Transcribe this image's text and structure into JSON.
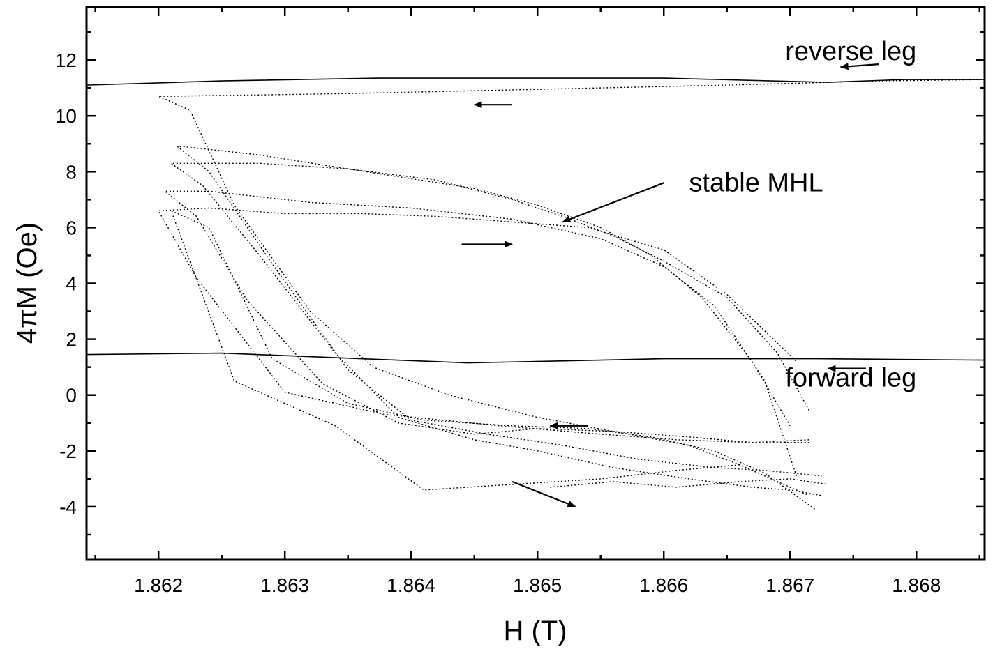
{
  "chart_data": {
    "type": "line",
    "xlabel": "H (T)",
    "ylabel": "4πM (Oe)",
    "xlim": [
      1.86143,
      1.86854
    ],
    "ylim": [
      -5.9,
      13.9
    ],
    "x_ticks": [
      1.862,
      1.863,
      1.864,
      1.865,
      1.866,
      1.867,
      1.868
    ],
    "x_tick_labels": [
      "1.862",
      "1.863",
      "1.864",
      "1.865",
      "1.866",
      "1.867",
      "1.868"
    ],
    "y_ticks": [
      -4,
      -2,
      0,
      2,
      4,
      6,
      8,
      10,
      12
    ],
    "y_tick_labels": [
      "-4",
      "-2",
      "0",
      "2",
      "4",
      "6",
      "8",
      "10",
      "12"
    ],
    "grid": false,
    "annotations": [
      {
        "text": "reverse leg",
        "x": 1.868,
        "y": 12.0
      },
      {
        "text": "forward leg",
        "x": 1.868,
        "y": 0.3
      },
      {
        "text": "stable MHL",
        "x": 1.8662,
        "y": 7.3
      }
    ],
    "series": [
      {
        "style": "solid",
        "x": [
          1.86143,
          1.8625,
          1.86375,
          1.866,
          1.8673,
          1.8679,
          1.86854
        ],
        "y": [
          11.1,
          11.25,
          11.35,
          11.35,
          11.2,
          11.3,
          11.3
        ]
      },
      {
        "style": "solid",
        "x": [
          1.86143,
          1.8625,
          1.86445,
          1.866,
          1.8672,
          1.86854
        ],
        "y": [
          1.45,
          1.5,
          1.15,
          1.3,
          1.3,
          1.25
        ]
      },
      {
        "style": "dotted",
        "x": [
          1.86854,
          1.8677,
          1.8665,
          1.8655,
          1.8645,
          1.8635,
          1.8628,
          1.862,
          1.86225,
          1.8626,
          1.8632,
          1.8637,
          1.8643,
          1.865,
          1.8656,
          1.8662,
          1.8666,
          1.867,
          1.86715
        ],
        "y": [
          11.3,
          11.25,
          11.1,
          11.0,
          10.9,
          10.8,
          10.75,
          10.7,
          10.2,
          6.8,
          3.0,
          1.0,
          0.0,
          -0.8,
          -1.3,
          -1.8,
          -2.5,
          -3.3,
          -3.6
        ]
      },
      {
        "style": "dotted",
        "x": [
          1.86715,
          1.8669,
          1.8665,
          1.866,
          1.8656,
          1.8652,
          1.8648,
          1.8642,
          1.8635,
          1.8628,
          1.8623,
          1.8621,
          1.86235,
          1.8628,
          1.8634,
          1.8639,
          1.8645,
          1.865,
          1.8656,
          1.8662,
          1.8667,
          1.867,
          1.86725
        ],
        "y": [
          -0.55,
          1.5,
          3.5,
          4.8,
          5.7,
          6.4,
          7.0,
          7.7,
          8.1,
          8.3,
          8.3,
          8.3,
          7.5,
          5.0,
          1.5,
          -0.8,
          -1.6,
          -2.0,
          -2.6,
          -3.0,
          -3.3,
          -3.4,
          -3.6
        ]
      },
      {
        "style": "dotted",
        "x": [
          1.867,
          1.8667,
          1.8663,
          1.8659,
          1.8655,
          1.865,
          1.8645,
          1.8635,
          1.8628,
          1.8622,
          1.86215,
          1.8624,
          1.8629,
          1.8635,
          1.864,
          1.8646,
          1.8652,
          1.8658,
          1.8664,
          1.8668,
          1.86725
        ],
        "y": [
          -1.1,
          1.2,
          3.5,
          5.0,
          6.0,
          6.8,
          7.4,
          8.1,
          8.6,
          8.9,
          8.9,
          8.0,
          4.7,
          0.9,
          -0.9,
          -1.4,
          -1.8,
          -2.3,
          -2.6,
          -2.7,
          -2.9
        ]
      },
      {
        "style": "dotted",
        "x": [
          1.86705,
          1.8668,
          1.8664,
          1.866,
          1.8655,
          1.8648,
          1.864,
          1.8632,
          1.8624,
          1.86205,
          1.8623,
          1.8627,
          1.8633,
          1.8639,
          1.8645,
          1.865,
          1.8656,
          1.8662,
          1.8667,
          1.86715
        ],
        "y": [
          -2.9,
          0.5,
          3.2,
          4.6,
          5.6,
          6.3,
          6.7,
          6.9,
          7.3,
          7.3,
          6.4,
          3.4,
          0.4,
          -1.0,
          -1.4,
          -1.2,
          -1.3,
          -1.5,
          -1.7,
          -1.7
        ]
      },
      {
        "style": "dotted",
        "x": [
          1.86715,
          1.8667,
          1.8661,
          1.8655,
          1.8647,
          1.8638,
          1.863,
          1.8623,
          1.862,
          1.8624,
          1.863,
          1.8636,
          1.8642,
          1.8648,
          1.8654,
          1.866,
          1.8665,
          1.86705
        ],
        "y": [
          -1.6,
          -1.7,
          -1.6,
          -1.4,
          -1.1,
          -0.7,
          0.1,
          4.2,
          6.6,
          6.7,
          6.5,
          6.5,
          6.4,
          6.2,
          6.0,
          5.2,
          3.6,
          1.2
        ]
      },
      {
        "style": "dotted",
        "x": [
          1.8666,
          1.8661,
          1.8655,
          1.8648,
          1.8641,
          1.8634,
          1.8626,
          1.8621,
          1.8624,
          1.8629,
          1.8635,
          1.8641,
          1.8648,
          1.8654,
          1.8659,
          1.8664,
          1.8668,
          1.8672
        ],
        "y": [
          -2.5,
          -2.7,
          -3.0,
          -3.2,
          -3.4,
          -1.1,
          0.5,
          6.6,
          6.0,
          1.3,
          -0.3,
          -0.9,
          -1.1,
          -1.2,
          -1.5,
          -2.0,
          -2.8,
          -4.1
        ]
      },
      {
        "style": "dotted",
        "x": [
          1.8651,
          1.8656,
          1.8661,
          1.8666,
          1.867,
          1.8673
        ],
        "y": [
          -3.3,
          -3.1,
          -3.3,
          -3.1,
          -3.0,
          -3.2
        ]
      }
    ],
    "direction_arrows": [
      {
        "x1": 1.8648,
        "y1": 10.4,
        "x2": 1.8645,
        "y2": 10.4
      },
      {
        "x1": 1.8644,
        "y1": 5.4,
        "x2": 1.8648,
        "y2": 5.4
      },
      {
        "x1": 1.8654,
        "y1": -1.1,
        "x2": 1.8651,
        "y2": -1.1
      },
      {
        "x1": 1.8648,
        "y1": -3.1,
        "x2": 1.8653,
        "y2": -4.0
      },
      {
        "x1": 1.8677,
        "y1": 11.85,
        "x2": 1.8674,
        "y2": 11.75
      },
      {
        "x1": 1.8676,
        "y1": 0.95,
        "x2": 1.8673,
        "y2": 0.95
      }
    ],
    "pointer": {
      "x1": 1.866,
      "y1": 7.6,
      "x2": 1.8652,
      "y2": 6.2
    }
  }
}
